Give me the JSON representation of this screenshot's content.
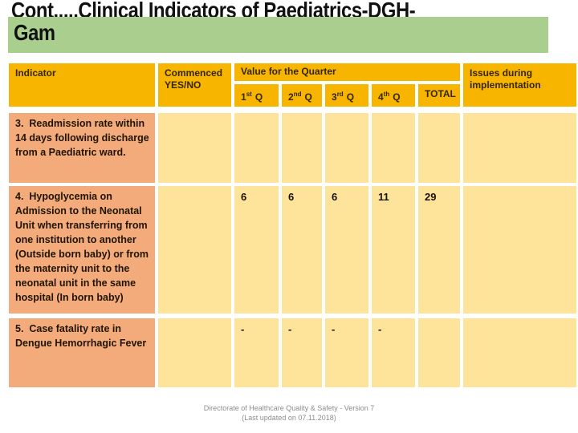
{
  "title": {
    "line1": "Cont.....Clinical Indicators of Paediatrics-DGH-",
    "line2": "Gam"
  },
  "colors": {
    "title_highlight_green": "#a9ce8d",
    "header_orange": "#f8b500",
    "indicator_salmon": "#f3ab7c",
    "value_cream": "#fee49b",
    "footer_gray": "#8c8c8c"
  },
  "table": {
    "headers": {
      "indicator": "Indicator",
      "commenced": "Commenced YES/NO",
      "value_group": "Value for the Quarter",
      "quarters": [
        {
          "base": "1",
          "sup": "st"
        },
        {
          "base": "2",
          "sup": "nd"
        },
        {
          "base": "3",
          "sup": "rd"
        },
        {
          "base": "4",
          "sup": "th"
        }
      ],
      "q_suffix": "Q",
      "total": "TOTAL",
      "issues": "Issues during implementation"
    },
    "rows": [
      {
        "indicator": "3.  Readmission rate within 14 days following discharge from a Paediatric ward.",
        "commenced": "",
        "q1": "",
        "q2": "",
        "q3": "",
        "q4": "",
        "total": "",
        "issues": ""
      },
      {
        "indicator": "4.  Hypoglycemia on Admission to the Neonatal Unit when transferring from one institution to another (Outside born baby) or from the maternity unit to the neonatal unit in the same hospital (In born baby)",
        "commenced": "",
        "q1": "6",
        "q2": "6",
        "q3": "6",
        "q4": "11",
        "total": "29",
        "issues": ""
      },
      {
        "indicator": "5.  Case fatality rate in Dengue Hemorrhagic Fever",
        "commenced": "",
        "q1": "-",
        "q2": "-",
        "q3": "-",
        "q4": "-",
        "total": "",
        "issues": ""
      }
    ]
  },
  "footer": {
    "line1": "Directorate of Healthcare Quality & Safety - Version 7",
    "line2": "(Last updated on 07.11.2018)"
  }
}
